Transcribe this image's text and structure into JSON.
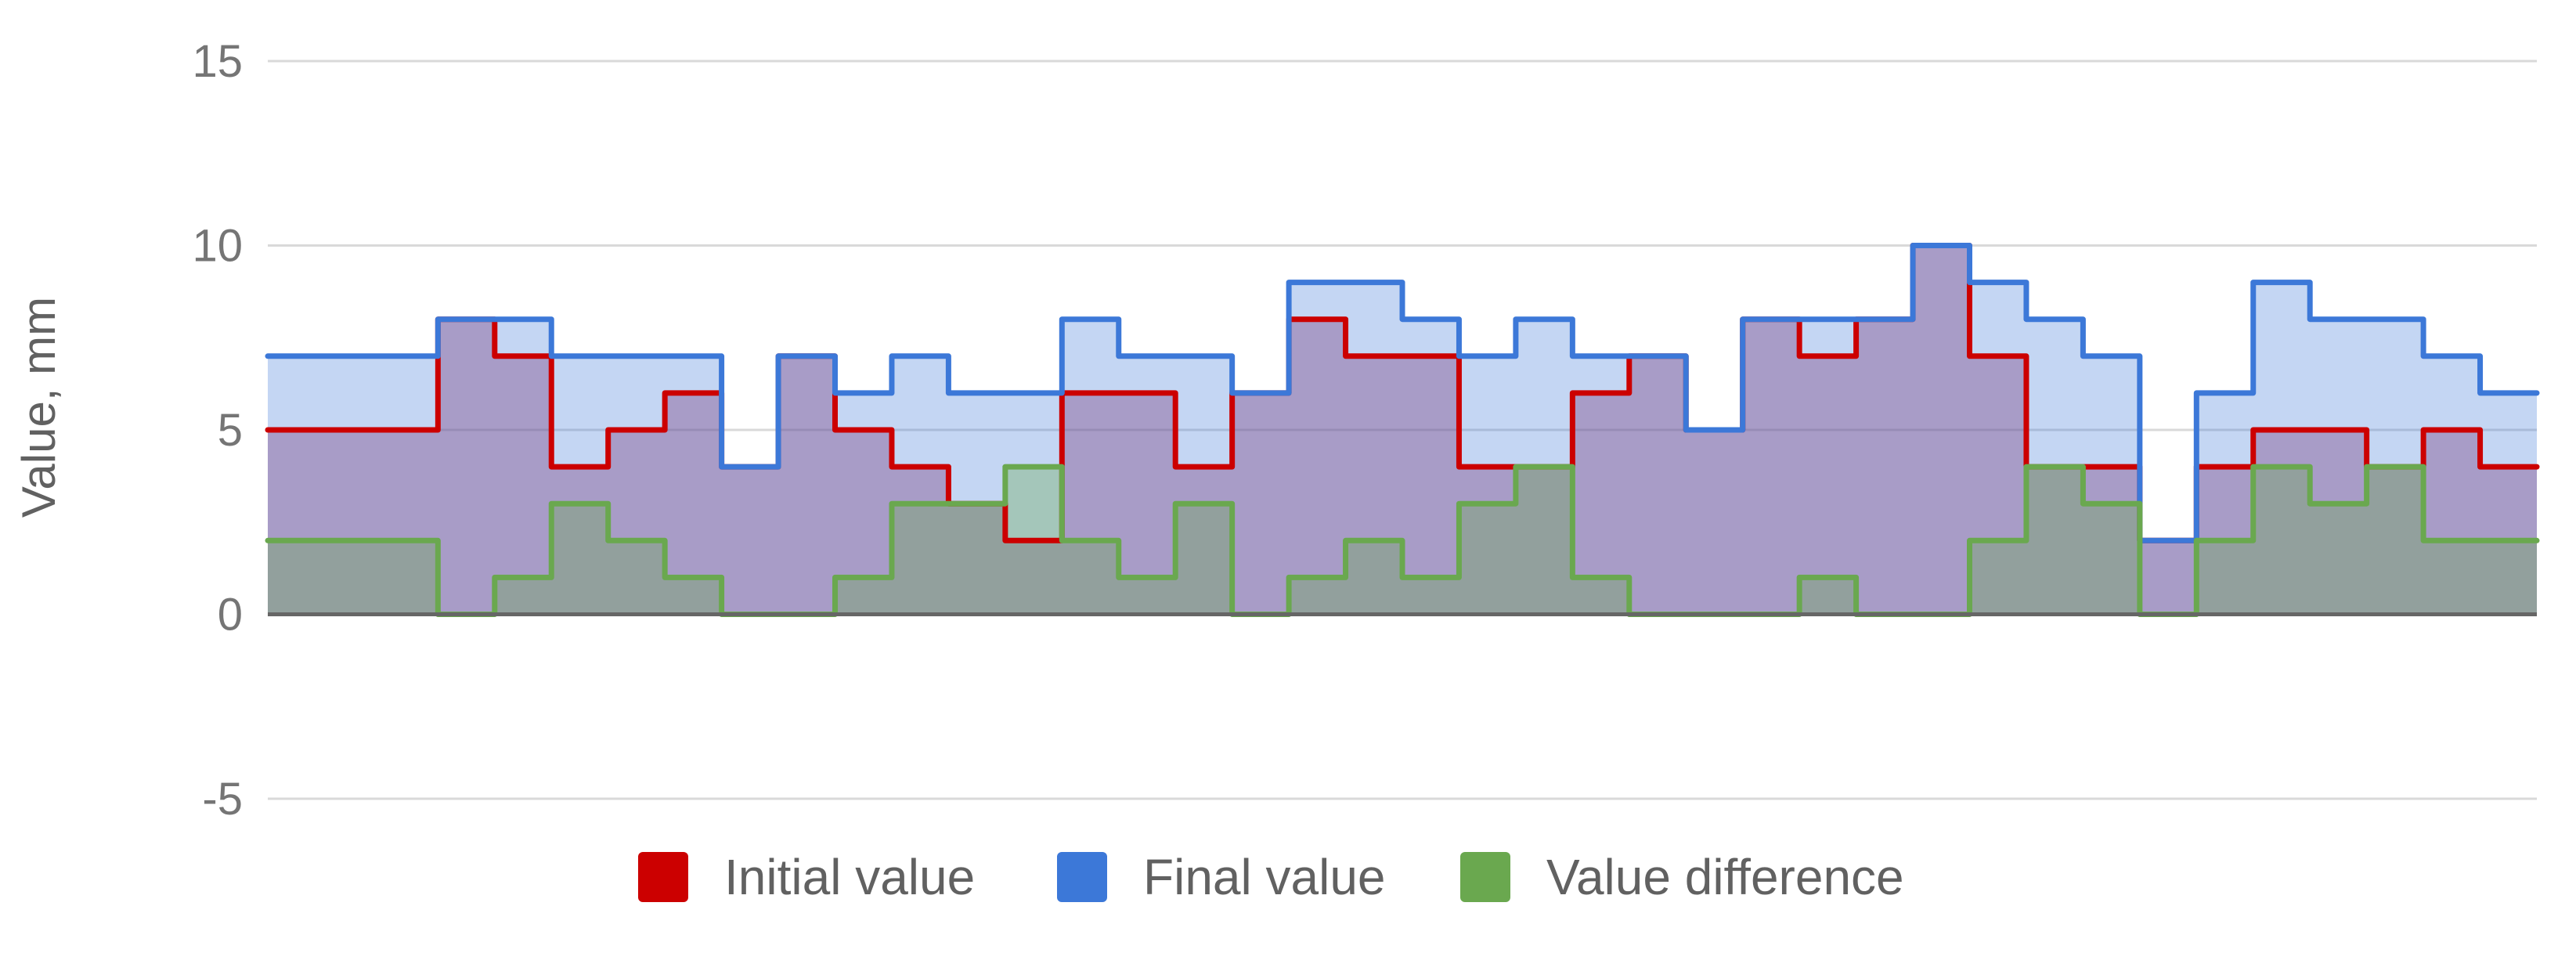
{
  "chart_data": {
    "type": "area",
    "subtype": "stepped",
    "title": "",
    "xlabel": "",
    "ylabel": "Value, mm",
    "ylim": [
      -5,
      15
    ],
    "yticks": [
      -5,
      0,
      5,
      10,
      15
    ],
    "grid": true,
    "legend_position": "bottom",
    "x": [
      0,
      1,
      2,
      3,
      4,
      5,
      6,
      7,
      8,
      9,
      10,
      11,
      12,
      13,
      14,
      15,
      16,
      17,
      18,
      19,
      20,
      21,
      22,
      23,
      24,
      25,
      26,
      27,
      28,
      29,
      30,
      31,
      32,
      33,
      34,
      35,
      36,
      37,
      38,
      39
    ],
    "series": [
      {
        "name": "Initial value",
        "color": "#cc0000",
        "fill": "rgba(150,40,90,0.38)",
        "values": [
          5,
          5,
          5,
          8,
          7,
          4,
          5,
          6,
          4,
          7,
          5,
          4,
          3,
          2,
          6,
          6,
          4,
          6,
          8,
          7,
          7,
          4,
          4,
          6,
          7,
          5,
          8,
          7,
          8,
          10,
          7,
          4,
          4,
          2,
          4,
          5,
          5,
          4,
          5,
          4
        ]
      },
      {
        "name": "Final value",
        "color": "#3c78d8",
        "fill": "rgba(60,120,216,0.30)",
        "values": [
          7,
          7,
          7,
          8,
          8,
          7,
          7,
          7,
          4,
          7,
          6,
          7,
          6,
          6,
          8,
          7,
          7,
          6,
          9,
          9,
          8,
          7,
          8,
          7,
          7,
          5,
          8,
          8,
          8,
          10,
          9,
          8,
          7,
          2,
          6,
          9,
          8,
          8,
          7,
          6
        ]
      },
      {
        "name": "Value difference",
        "color": "#6aa84f",
        "fill": "rgba(106,168,79,0.35)",
        "values": [
          2,
          2,
          2,
          0,
          1,
          3,
          2,
          1,
          0,
          0,
          1,
          3,
          3,
          4,
          2,
          1,
          3,
          0,
          1,
          2,
          1,
          3,
          4,
          1,
          0,
          0,
          0,
          1,
          0,
          0,
          2,
          4,
          3,
          0,
          2,
          4,
          3,
          4,
          2,
          2
        ]
      }
    ]
  }
}
